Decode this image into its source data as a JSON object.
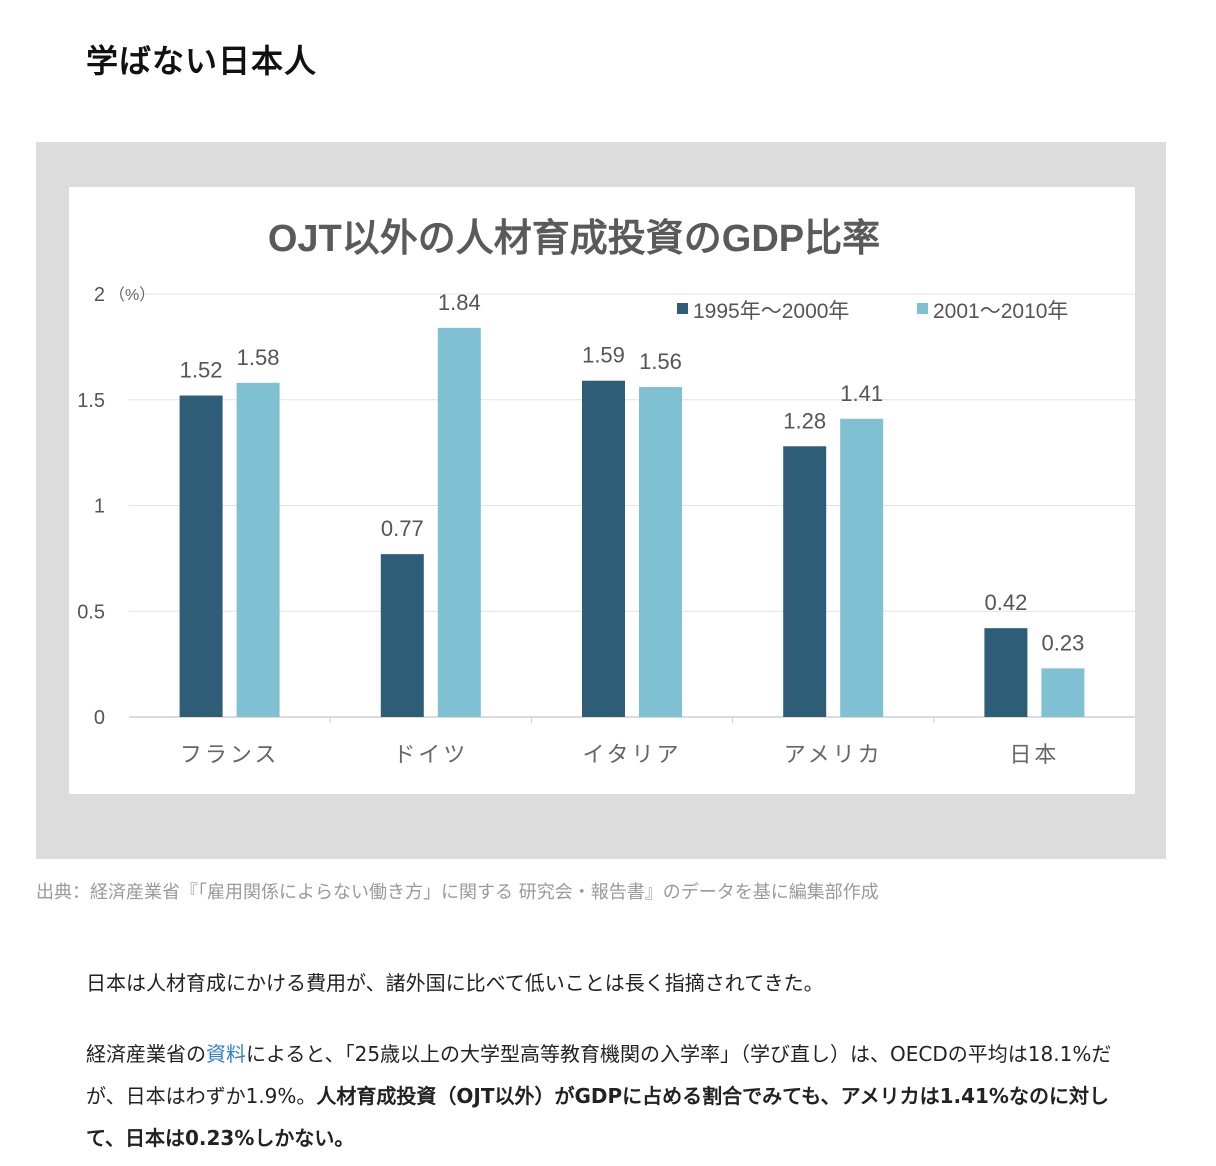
{
  "heading": "学ばない日本人",
  "chart_data": {
    "type": "bar",
    "title": "OJT以外の人材育成投資のGDP比率",
    "unit_label": "（%）",
    "categories": [
      "フランス",
      "ドイツ",
      "イタリア",
      "アメリカ",
      "日本"
    ],
    "series": [
      {
        "name": "1995年〜2000年",
        "values": [
          1.52,
          0.77,
          1.59,
          1.28,
          0.42
        ],
        "color": "#2e5d78",
        "labels": [
          "1.52",
          "0.77",
          "1.59",
          "1.28",
          "0.42"
        ]
      },
      {
        "name": "2001〜2010年",
        "values": [
          1.58,
          1.84,
          1.56,
          1.41,
          0.23
        ],
        "color": "#7fc0d2",
        "labels": [
          "1.58",
          "1.84",
          "1.56",
          "1.41",
          "0.23"
        ]
      }
    ],
    "ylim": [
      0,
      2
    ],
    "yticks": [
      0,
      0.5,
      1,
      1.5,
      2
    ],
    "ytick_labels": [
      "0",
      "0.5",
      "1",
      "1.5",
      "2"
    ],
    "grid": true,
    "legend_position": "top-right"
  },
  "caption": "出典：経済産業省『「雇用関係によらない働き方」に関する 研究会・報告書』のデータを基に編集部作成",
  "paragraph1": "日本は人材育成にかける費用が、諸外国に比べて低いことは長く指摘されてきた。",
  "paragraph2": {
    "part1": "経済産業省の",
    "link": "資料",
    "part2": "によると、「25歳以上の大学型高等教育機関の入学率」（学び直し）は、OECDの平均は18.1%だが、日本はわずか1.9%。",
    "bold": "人材育成投資（OJT以外）がGDPに占める割合でみても、アメリカは1.41%なのに対して、日本は0.23%しかない。"
  }
}
